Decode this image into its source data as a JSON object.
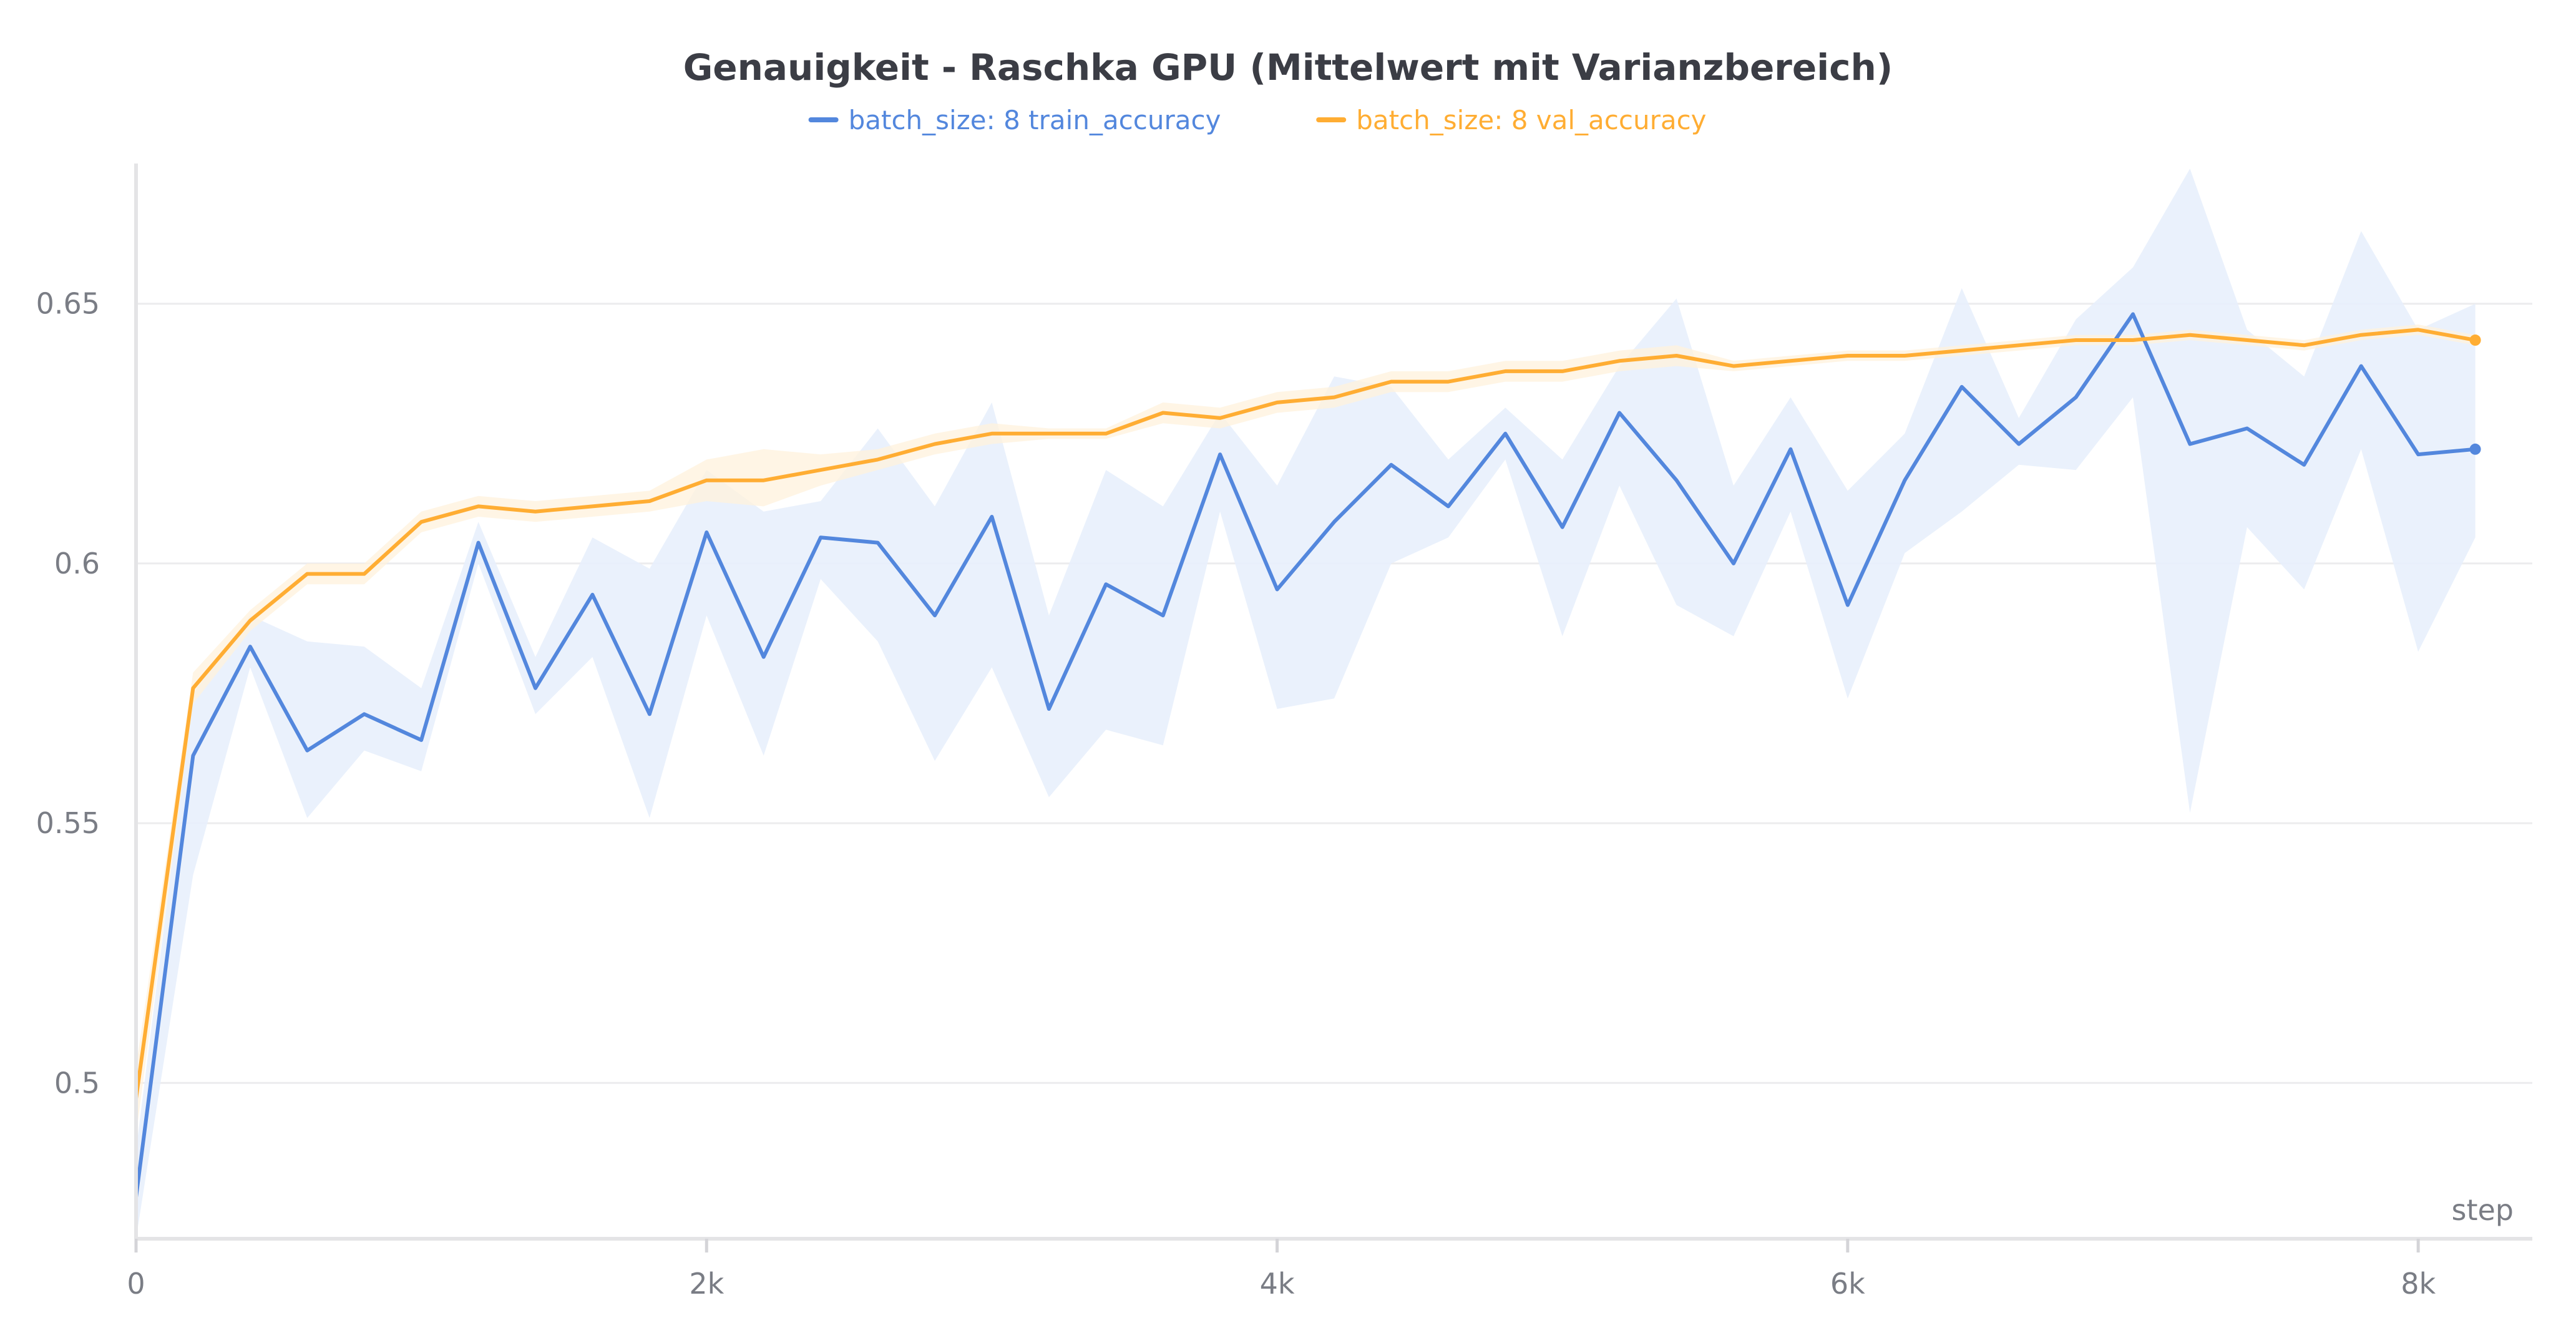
{
  "chart_data": {
    "type": "line",
    "title": "Genauigkeit - Raschka GPU (Mittelwert mit Varianzbereich)",
    "xlabel": "step",
    "ylabel": "",
    "xlim": [
      0,
      8400
    ],
    "ylim": [
      0.47,
      0.677
    ],
    "x_ticks": [
      {
        "value": 0,
        "label": "0"
      },
      {
        "value": 2000,
        "label": "2k"
      },
      {
        "value": 4000,
        "label": "4k"
      },
      {
        "value": 6000,
        "label": "6k"
      },
      {
        "value": 8000,
        "label": "8k"
      }
    ],
    "y_ticks": [
      {
        "value": 0.5,
        "label": "0.5"
      },
      {
        "value": 0.55,
        "label": "0.55"
      },
      {
        "value": 0.6,
        "label": "0.6"
      },
      {
        "value": 0.65,
        "label": "0.65"
      }
    ],
    "grid": true,
    "legend": "top-center",
    "x": [
      0,
      200,
      400,
      600,
      800,
      1000,
      1200,
      1400,
      1600,
      1800,
      2000,
      2200,
      2400,
      2600,
      2800,
      3000,
      3200,
      3400,
      3600,
      3800,
      4000,
      4200,
      4400,
      4600,
      4800,
      5000,
      5200,
      5400,
      5600,
      5800,
      6000,
      6200,
      6400,
      6600,
      6800,
      7000,
      7200,
      7400,
      7600,
      7800,
      8000,
      8200
    ],
    "series": [
      {
        "name": "batch_size: 8 train_accuracy",
        "color": "#5387dd",
        "band_color": "#e8f0fc",
        "values": [
          0.478,
          0.563,
          0.584,
          0.564,
          0.571,
          0.566,
          0.604,
          0.576,
          0.594,
          0.571,
          0.606,
          0.582,
          0.605,
          0.604,
          0.59,
          0.609,
          0.572,
          0.596,
          0.59,
          0.621,
          0.595,
          0.608,
          0.619,
          0.611,
          0.625,
          0.607,
          0.629,
          0.616,
          0.6,
          0.622,
          0.592,
          0.616,
          0.634,
          0.623,
          0.632,
          0.648,
          0.623,
          0.626,
          0.619,
          0.638,
          0.621,
          0.622
        ],
        "band_lower": [
          0.47,
          0.54,
          0.58,
          0.551,
          0.564,
          0.56,
          0.6,
          0.571,
          0.582,
          0.551,
          0.59,
          0.563,
          0.597,
          0.585,
          0.562,
          0.58,
          0.555,
          0.568,
          0.565,
          0.61,
          0.572,
          0.574,
          0.6,
          0.605,
          0.62,
          0.586,
          0.615,
          0.592,
          0.586,
          0.61,
          0.574,
          0.602,
          0.61,
          0.619,
          0.618,
          0.632,
          0.552,
          0.607,
          0.595,
          0.622,
          0.583,
          0.605
        ],
        "band_upper": [
          0.487,
          0.575,
          0.59,
          0.585,
          0.584,
          0.576,
          0.608,
          0.582,
          0.605,
          0.599,
          0.618,
          0.61,
          0.612,
          0.626,
          0.611,
          0.631,
          0.59,
          0.618,
          0.611,
          0.629,
          0.615,
          0.636,
          0.634,
          0.62,
          0.63,
          0.62,
          0.638,
          0.651,
          0.615,
          0.632,
          0.614,
          0.625,
          0.653,
          0.628,
          0.647,
          0.657,
          0.676,
          0.645,
          0.636,
          0.664,
          0.645,
          0.65
        ]
      },
      {
        "name": "batch_size: 8 val_accuracy",
        "color": "#ffad33",
        "band_color": "#fff2dc",
        "values": [
          0.497,
          0.576,
          0.589,
          0.598,
          0.598,
          0.608,
          0.611,
          0.61,
          0.611,
          0.612,
          0.616,
          0.616,
          0.618,
          0.62,
          0.623,
          0.625,
          0.625,
          0.625,
          0.629,
          0.628,
          0.631,
          0.632,
          0.635,
          0.635,
          0.637,
          0.637,
          0.639,
          0.64,
          0.638,
          0.639,
          0.64,
          0.64,
          0.641,
          0.642,
          0.643,
          0.643,
          0.644,
          0.643,
          0.642,
          0.644,
          0.645,
          0.643
        ],
        "band_lower": [
          0.49,
          0.573,
          0.587,
          0.596,
          0.596,
          0.606,
          0.609,
          0.608,
          0.609,
          0.61,
          0.612,
          0.611,
          0.615,
          0.618,
          0.621,
          0.623,
          0.624,
          0.624,
          0.627,
          0.626,
          0.629,
          0.63,
          0.633,
          0.633,
          0.635,
          0.635,
          0.637,
          0.638,
          0.637,
          0.638,
          0.639,
          0.639,
          0.64,
          0.641,
          0.642,
          0.642,
          0.643,
          0.642,
          0.641,
          0.643,
          0.644,
          0.642
        ],
        "band_upper": [
          0.503,
          0.579,
          0.591,
          0.6,
          0.6,
          0.61,
          0.613,
          0.612,
          0.613,
          0.614,
          0.62,
          0.622,
          0.621,
          0.622,
          0.625,
          0.627,
          0.626,
          0.626,
          0.631,
          0.63,
          0.633,
          0.634,
          0.637,
          0.637,
          0.639,
          0.639,
          0.641,
          0.642,
          0.639,
          0.64,
          0.641,
          0.641,
          0.642,
          0.643,
          0.644,
          0.644,
          0.645,
          0.644,
          0.643,
          0.645,
          0.646,
          0.644
        ]
      }
    ]
  }
}
